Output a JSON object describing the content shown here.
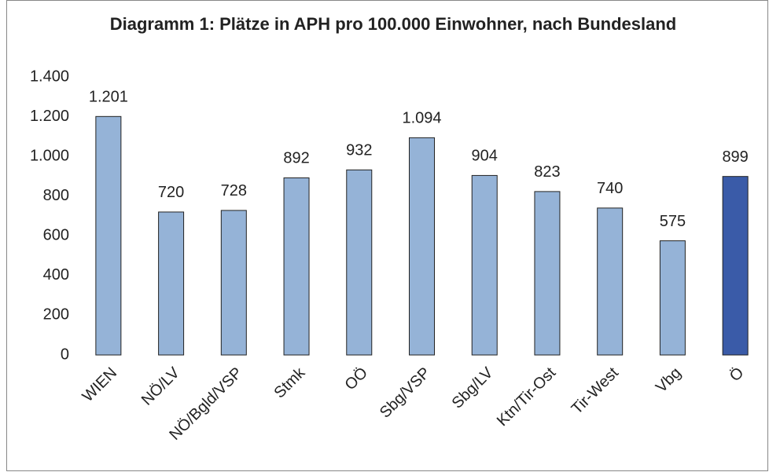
{
  "chart_data": {
    "type": "bar",
    "title": "Diagramm 1: Plätze in APH pro 100.000 Einwohner, nach Bundesland",
    "categories": [
      "WIEN",
      "NÖ/LV",
      "NÖ/Bgld/VSP",
      "Stmk",
      "OÖ",
      "Sbg/VSP",
      "Sbg/LV",
      "Ktn/Tir-Ost",
      "Tir-West",
      "Vbg",
      "Ö"
    ],
    "values": [
      1201,
      720,
      728,
      892,
      932,
      1094,
      904,
      823,
      740,
      575,
      899
    ],
    "value_labels": [
      "1.201",
      "720",
      "728",
      "892",
      "932",
      "1.094",
      "904",
      "823",
      "740",
      "575",
      "899"
    ],
    "colors": [
      "#95b3d7",
      "#95b3d7",
      "#95b3d7",
      "#95b3d7",
      "#95b3d7",
      "#95b3d7",
      "#95b3d7",
      "#95b3d7",
      "#95b3d7",
      "#95b3d7",
      "#3a5ba8"
    ],
    "ylim": [
      0,
      1400
    ],
    "yticks": [
      0,
      200,
      400,
      600,
      800,
      {
        "value": 1000,
        "label": "1.000"
      },
      {
        "value": 1200,
        "label": "1.200"
      },
      {
        "value": 1400,
        "label": "1.400"
      }
    ],
    "grid": false
  }
}
